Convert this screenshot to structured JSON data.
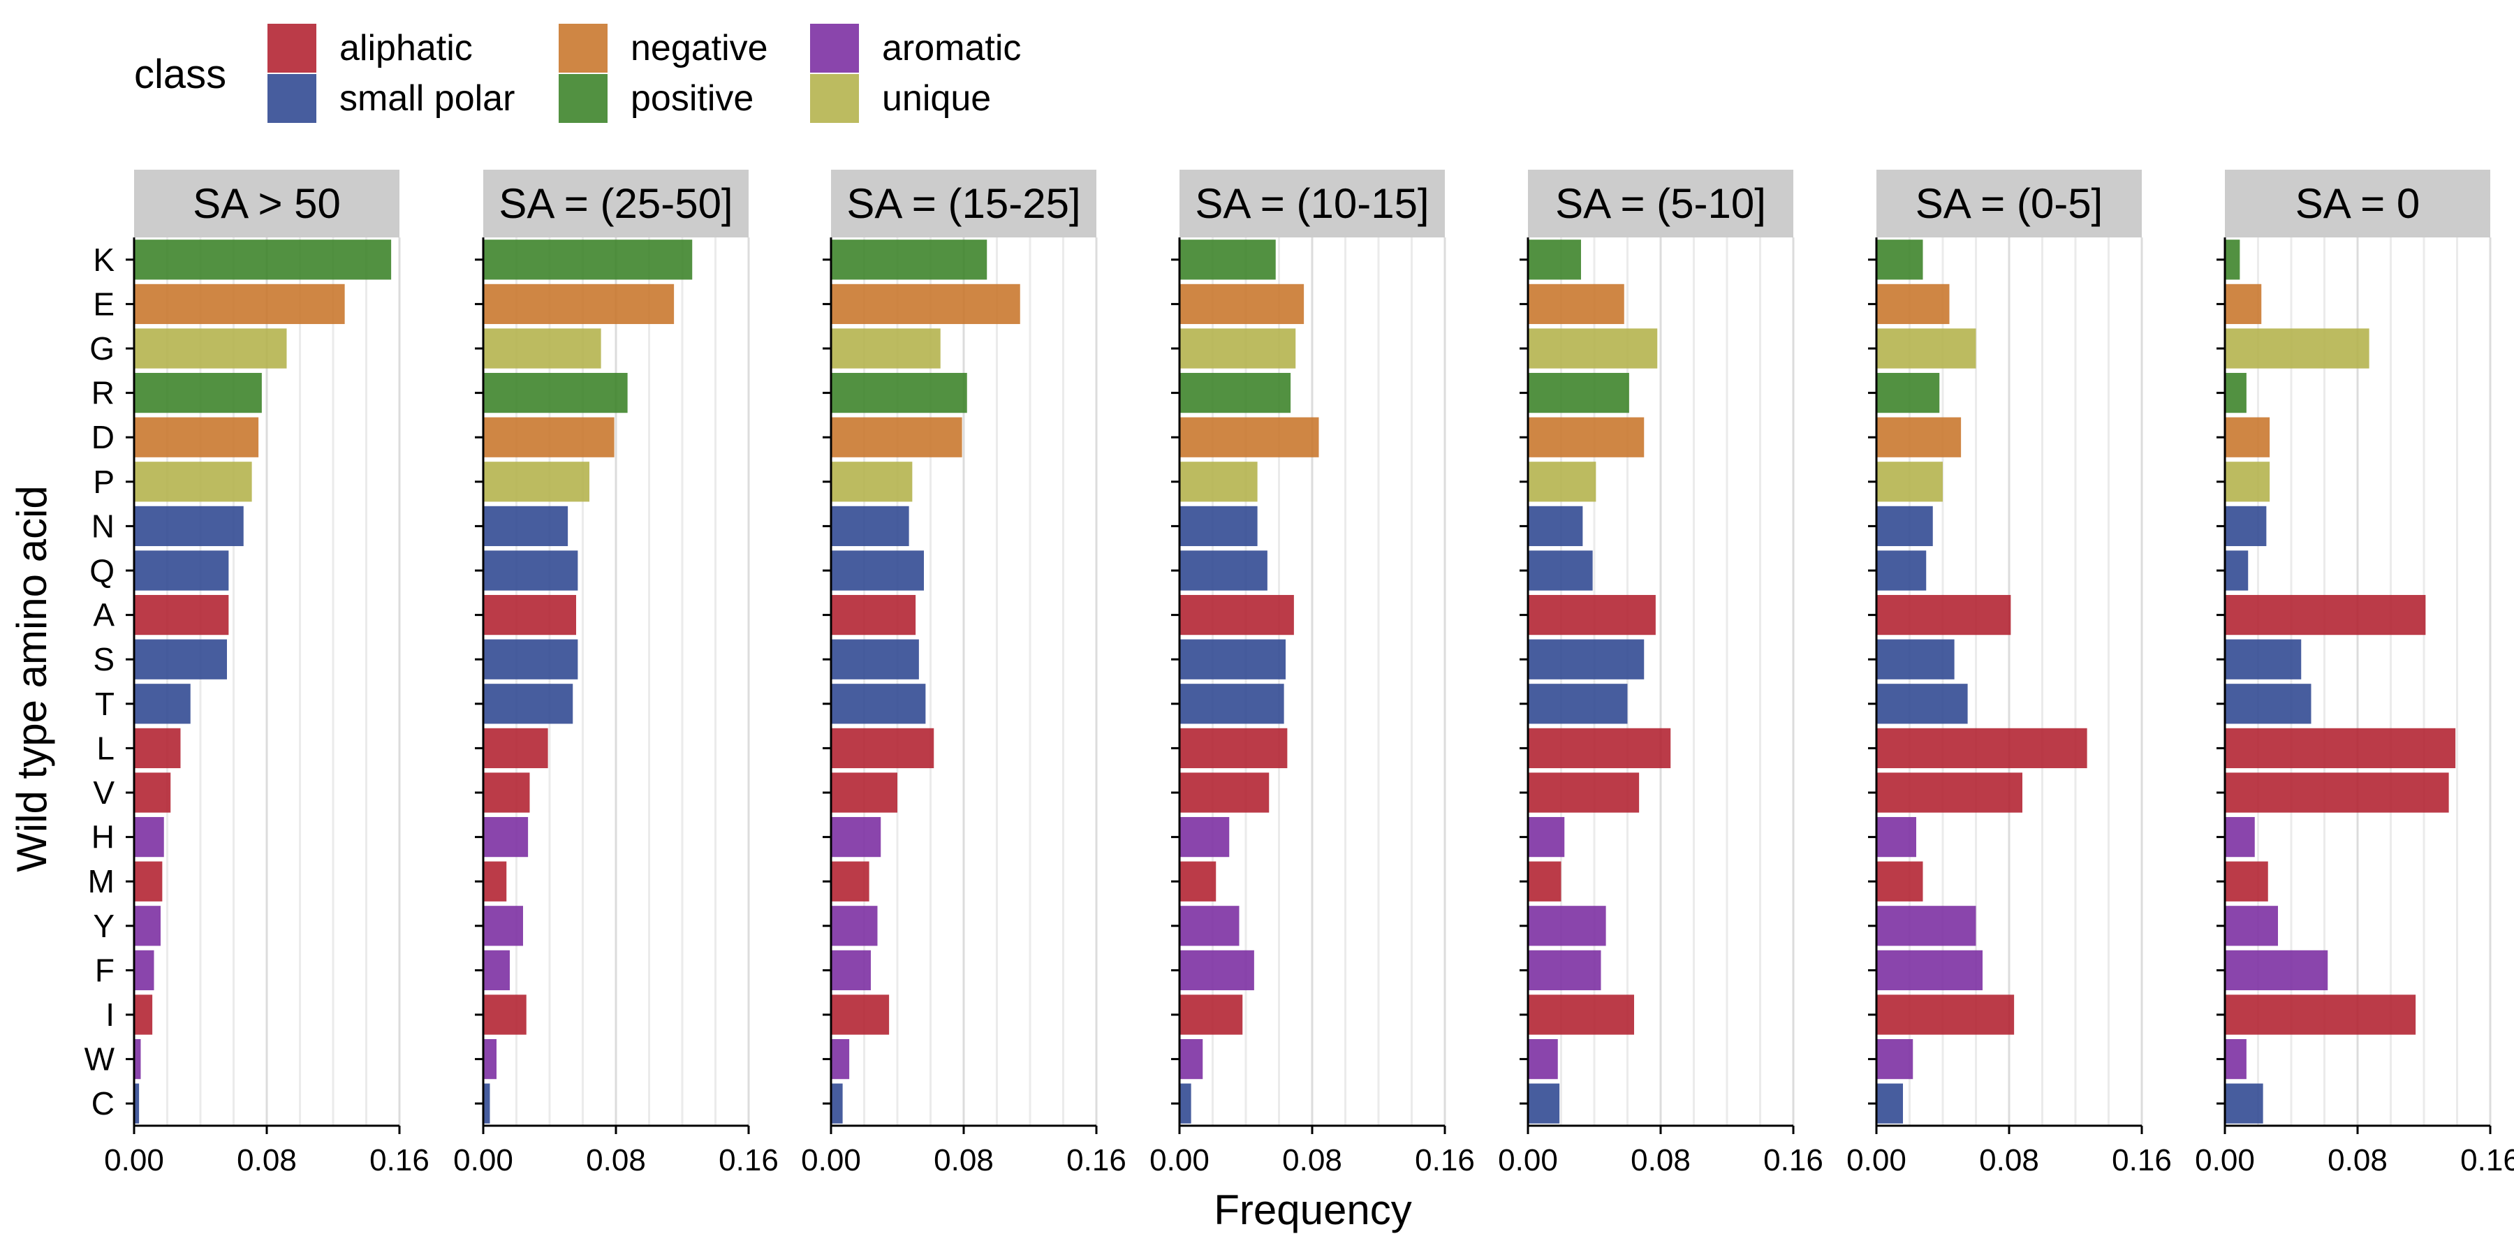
{
  "legend": {
    "title": "class",
    "items": [
      {
        "label": "aliphatic",
        "key": "aliphatic"
      },
      {
        "label": "small polar",
        "key": "small polar"
      },
      {
        "label": "negative",
        "key": "negative"
      },
      {
        "label": "positive",
        "key": "positive"
      },
      {
        "label": "aromatic",
        "key": "aromatic"
      },
      {
        "label": "unique",
        "key": "unique"
      }
    ]
  },
  "colors": {
    "aliphatic": "#B2202F",
    "small polar": "#2E4791",
    "negative": "#C8752A",
    "positive": "#3A8227",
    "aromatic": "#7A2BA0",
    "unique": "#B3B24A"
  },
  "chart_data": {
    "type": "bar",
    "orientation": "horizontal",
    "xlabel": "Frequency",
    "ylabel": "Wild type amino acid",
    "xlim": [
      0,
      0.16
    ],
    "xticks": [
      "0.00",
      "0.08",
      "0.16"
    ],
    "grid": true,
    "legend_position": "top-left",
    "categories": [
      "K",
      "E",
      "G",
      "R",
      "D",
      "P",
      "N",
      "Q",
      "A",
      "S",
      "T",
      "L",
      "V",
      "H",
      "M",
      "Y",
      "F",
      "I",
      "W",
      "C"
    ],
    "category_class": [
      "positive",
      "negative",
      "unique",
      "positive",
      "negative",
      "unique",
      "small polar",
      "small polar",
      "aliphatic",
      "small polar",
      "small polar",
      "aliphatic",
      "aliphatic",
      "aromatic",
      "aliphatic",
      "aromatic",
      "aromatic",
      "aliphatic",
      "aromatic",
      "small polar"
    ],
    "panels": [
      {
        "title": "SA > 50",
        "values": [
          0.155,
          0.127,
          0.092,
          0.077,
          0.075,
          0.071,
          0.066,
          0.057,
          0.057,
          0.056,
          0.034,
          0.028,
          0.022,
          0.018,
          0.017,
          0.016,
          0.012,
          0.011,
          0.004,
          0.003
        ]
      },
      {
        "title": "SA = (25-50]",
        "values": [
          0.126,
          0.115,
          0.071,
          0.087,
          0.079,
          0.064,
          0.051,
          0.057,
          0.056,
          0.057,
          0.054,
          0.039,
          0.028,
          0.027,
          0.014,
          0.024,
          0.016,
          0.026,
          0.008,
          0.004
        ]
      },
      {
        "title": "SA = (15-25]",
        "values": [
          0.094,
          0.114,
          0.066,
          0.082,
          0.079,
          0.049,
          0.047,
          0.056,
          0.051,
          0.053,
          0.057,
          0.062,
          0.04,
          0.03,
          0.023,
          0.028,
          0.024,
          0.035,
          0.011,
          0.007
        ]
      },
      {
        "title": "SA = (10-15]",
        "values": [
          0.058,
          0.075,
          0.07,
          0.067,
          0.084,
          0.047,
          0.047,
          0.053,
          0.069,
          0.064,
          0.063,
          0.065,
          0.054,
          0.03,
          0.022,
          0.036,
          0.045,
          0.038,
          0.014,
          0.007
        ]
      },
      {
        "title": "SA = (5-10]",
        "values": [
          0.032,
          0.058,
          0.078,
          0.061,
          0.07,
          0.041,
          0.033,
          0.039,
          0.077,
          0.07,
          0.06,
          0.086,
          0.067,
          0.022,
          0.02,
          0.047,
          0.044,
          0.064,
          0.018,
          0.019
        ]
      },
      {
        "title": "SA = (0-5]",
        "values": [
          0.028,
          0.044,
          0.06,
          0.038,
          0.051,
          0.04,
          0.034,
          0.03,
          0.081,
          0.047,
          0.055,
          0.127,
          0.088,
          0.024,
          0.028,
          0.06,
          0.064,
          0.083,
          0.022,
          0.016
        ]
      },
      {
        "title": "SA = 0",
        "values": [
          0.009,
          0.022,
          0.087,
          0.013,
          0.027,
          0.027,
          0.025,
          0.014,
          0.121,
          0.046,
          0.052,
          0.139,
          0.135,
          0.018,
          0.026,
          0.032,
          0.062,
          0.115,
          0.013,
          0.023
        ]
      }
    ]
  }
}
